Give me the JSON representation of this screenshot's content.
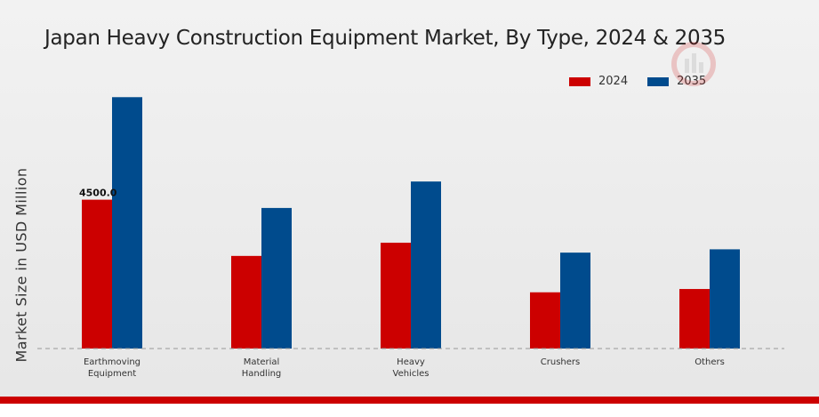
{
  "colors": {
    "series_2024": "#cc0000",
    "series_2035": "#004b8d",
    "bottom_bar": "#cc0000"
  },
  "chart_data": {
    "type": "bar",
    "title": "Japan Heavy Construction Equipment Market, By Type, 2024 & 2035",
    "ylabel": "Market Size in USD Million",
    "xlabel": "",
    "categories": [
      "Earthmoving Equipment",
      "Material Handling",
      "Heavy Vehicles",
      "Crushers",
      "Others"
    ],
    "series": [
      {
        "name": "2024",
        "values": [
          4500.0,
          2800,
          3200,
          1700,
          1800
        ]
      },
      {
        "name": "2035",
        "values": [
          7600,
          4250,
          5050,
          2900,
          3000
        ]
      }
    ],
    "data_labels": [
      {
        "series": 0,
        "category": 0,
        "text": "4500.0"
      }
    ],
    "ylim": [
      0,
      10000
    ],
    "baseline": "dashed",
    "grid": false,
    "legend_position": "top-right"
  }
}
